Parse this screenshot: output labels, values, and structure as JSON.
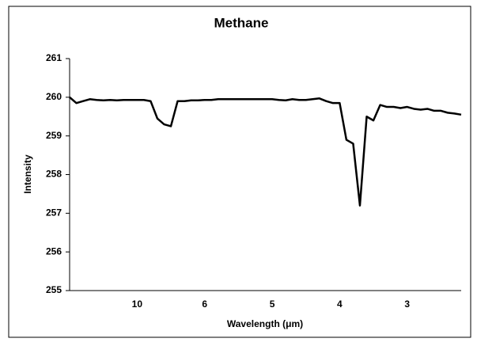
{
  "chart_data": {
    "type": "line",
    "title": "Methane",
    "x_label": "Wavelength (μm)",
    "y_label": "Intensity",
    "categories": [
      null,
      null,
      null,
      null,
      null,
      null,
      null,
      null,
      null,
      null,
      "10",
      null,
      null,
      null,
      null,
      null,
      null,
      null,
      null,
      null,
      "6",
      null,
      null,
      null,
      null,
      null,
      null,
      null,
      null,
      null,
      "5",
      null,
      null,
      null,
      null,
      null,
      null,
      null,
      null,
      null,
      "4",
      null,
      null,
      null,
      null,
      null,
      null,
      null,
      null,
      null,
      "3",
      null,
      null,
      null,
      null,
      null,
      null,
      null,
      null
    ],
    "series": [
      {
        "name": "Methane",
        "color": "#000000",
        "values": [
          260.0,
          259.85,
          259.9,
          259.95,
          259.93,
          259.92,
          259.93,
          259.92,
          259.93,
          259.93,
          259.93,
          259.93,
          259.9,
          259.45,
          259.3,
          259.25,
          259.9,
          259.9,
          259.92,
          259.92,
          259.93,
          259.93,
          259.95,
          259.95,
          259.95,
          259.95,
          259.95,
          259.95,
          259.95,
          259.95,
          259.95,
          259.93,
          259.92,
          259.95,
          259.93,
          259.93,
          259.95,
          259.97,
          259.9,
          259.85,
          259.85,
          258.9,
          258.8,
          257.2,
          259.5,
          259.4,
          259.8,
          259.75,
          259.75,
          259.72,
          259.75,
          259.7,
          259.68,
          259.7,
          259.65,
          259.65,
          259.6,
          259.58,
          259.55
        ]
      }
    ],
    "ylim": [
      255,
      261
    ],
    "yticks": [
      255,
      256,
      257,
      258,
      259,
      260,
      261
    ],
    "grid": false
  }
}
